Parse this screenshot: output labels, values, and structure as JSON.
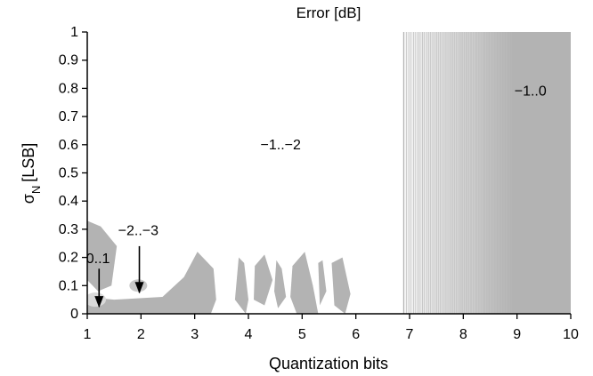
{
  "chart_data": {
    "type": "contour",
    "title": "Error [dB]",
    "xlabel": "Quantization bits",
    "ylabel_main": "σ",
    "ylabel_sub": "N",
    "ylabel_unit": "[LSB]",
    "xlim": [
      1,
      10
    ],
    "ylim": [
      0,
      1
    ],
    "x_ticks": [
      1,
      2,
      3,
      4,
      5,
      6,
      7,
      8,
      9,
      10
    ],
    "y_ticks": [
      0,
      0.1,
      0.2,
      0.3,
      0.4,
      0.5,
      0.6,
      0.7,
      0.8,
      0.9,
      1
    ],
    "y_tick_labels": [
      "0",
      "0.1",
      "0.2",
      "0.3",
      "0.4",
      "0.5",
      "0.6",
      "0.7",
      "0.8",
      "0.9",
      "1"
    ],
    "grid": false,
    "legend": "none",
    "colors": {
      "band_minus1_to_minus2": "#ffffff",
      "band_minus1_to_0": "#b3b3b3",
      "band_minus2_to_minus3": "#c8c8c8",
      "band_0_to_1": "#d9d9d9",
      "axis": "#000000"
    },
    "annotations": {
      "a1": {
        "text": "−1..−2",
        "x": 4.6,
        "y": 0.6
      },
      "a2": {
        "text": "−1..0",
        "x": 9.25,
        "y": 0.79
      },
      "a3": {
        "text": "−2..−3",
        "x": 1.95,
        "y": 0.295
      },
      "a4": {
        "text": "0..1",
        "x": 1.2,
        "y": 0.195
      }
    },
    "arrows": [
      {
        "from": [
          1.97,
          0.24
        ],
        "to": [
          1.97,
          0.1
        ]
      },
      {
        "from": [
          1.22,
          0.16
        ],
        "to": [
          1.22,
          0.05
        ]
      }
    ],
    "regions": {
      "minus1_to_0_upper": [
        [
          6.88,
          1.0
        ],
        [
          10.0,
          1.0
        ],
        [
          10.0,
          0.0
        ],
        [
          6.88,
          0.0
        ]
      ],
      "minus1_to_0_lower_blobs": [
        [
          [
            1.0,
            0.33
          ],
          [
            1.25,
            0.31
          ],
          [
            1.55,
            0.24
          ],
          [
            1.45,
            0.1
          ],
          [
            1.2,
            0.08
          ],
          [
            1.0,
            0.12
          ]
        ],
        [
          [
            1.0,
            0.06
          ],
          [
            1.5,
            0.05
          ],
          [
            2.4,
            0.06
          ],
          [
            2.8,
            0.13
          ],
          [
            3.05,
            0.22
          ],
          [
            3.35,
            0.16
          ],
          [
            3.4,
            0.05
          ],
          [
            3.3,
            0.0
          ],
          [
            1.0,
            0.0
          ]
        ],
        [
          [
            3.82,
            0.2
          ],
          [
            3.92,
            0.18
          ],
          [
            4.0,
            0.05
          ],
          [
            3.95,
            0.0
          ],
          [
            3.75,
            0.05
          ]
        ],
        [
          [
            4.12,
            0.17
          ],
          [
            4.3,
            0.21
          ],
          [
            4.45,
            0.12
          ],
          [
            4.3,
            0.03
          ],
          [
            4.1,
            0.05
          ]
        ],
        [
          [
            4.52,
            0.19
          ],
          [
            4.62,
            0.16
          ],
          [
            4.7,
            0.06
          ],
          [
            4.55,
            0.02
          ],
          [
            4.48,
            0.08
          ]
        ],
        [
          [
            4.82,
            0.17
          ],
          [
            5.05,
            0.22
          ],
          [
            5.2,
            0.1
          ],
          [
            5.3,
            0.0
          ],
          [
            4.9,
            0.0
          ],
          [
            4.78,
            0.06
          ]
        ],
        [
          [
            5.3,
            0.18
          ],
          [
            5.38,
            0.19
          ],
          [
            5.45,
            0.08
          ],
          [
            5.33,
            0.03
          ]
        ],
        [
          [
            5.55,
            0.18
          ],
          [
            5.75,
            0.2
          ],
          [
            5.9,
            0.07
          ],
          [
            5.8,
            0.0
          ],
          [
            5.6,
            0.03
          ]
        ]
      ],
      "minus2_to_minus3_center": [
        1.95,
        0.1
      ],
      "zero_to_one_center": [
        1.15,
        0.05
      ]
    }
  }
}
